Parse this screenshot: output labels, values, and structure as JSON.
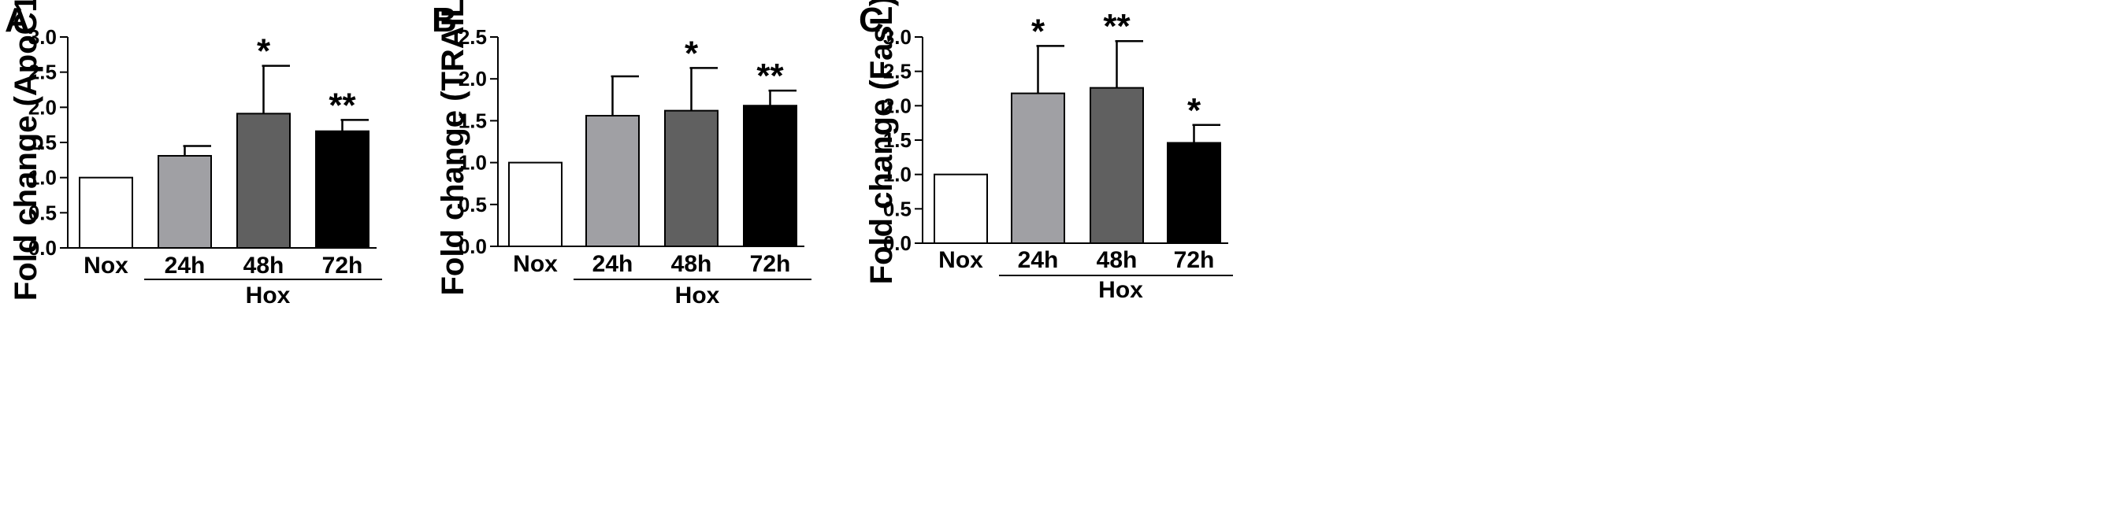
{
  "chart_data": [
    {
      "type": "bar",
      "panel": "A",
      "categories": [
        "Nox",
        "24h",
        "48h",
        "72h"
      ],
      "values": [
        1.0,
        1.31,
        1.91,
        1.66
      ],
      "errors": [
        0,
        0.14,
        0.68,
        0.16
      ],
      "significance": [
        "",
        "",
        "*",
        "**"
      ],
      "colors": [
        "#ffffff",
        "#a0a0a4",
        "#606060",
        "#000000"
      ],
      "ylabel": "Fold change (ApoC1)",
      "ylim": [
        0,
        3.0
      ],
      "yticks": [
        "0.0",
        "0.5",
        "1.0",
        "1.5",
        "2.0",
        "2.5",
        "3.0"
      ],
      "group_label": "Hox",
      "grid": false
    },
    {
      "type": "bar",
      "panel": "B",
      "categories": [
        "Nox",
        "24h",
        "48h",
        "72h"
      ],
      "values": [
        1.0,
        1.56,
        1.62,
        1.68
      ],
      "errors": [
        0,
        0.47,
        0.51,
        0.18
      ],
      "significance": [
        "",
        "",
        "*",
        "**"
      ],
      "colors": [
        "#ffffff",
        "#a0a0a4",
        "#606060",
        "#000000"
      ],
      "ylabel": "Fold change (TRAIL)",
      "ylim": [
        0,
        2.5
      ],
      "yticks": [
        "0.0",
        "0.5",
        "1.0",
        "1.5",
        "2.0",
        "2.5"
      ],
      "group_label": "Hox",
      "grid": false
    },
    {
      "type": "bar",
      "panel": "C",
      "categories": [
        "Nox",
        "24h",
        "48h",
        "72h"
      ],
      "values": [
        1.0,
        2.18,
        2.26,
        1.46
      ],
      "errors": [
        0,
        0.69,
        0.68,
        0.26
      ],
      "significance": [
        "",
        "*",
        "**",
        "*"
      ],
      "colors": [
        "#ffffff",
        "#a0a0a4",
        "#606060",
        "#000000"
      ],
      "ylabel": "Fold change (FasL)",
      "ylim": [
        0,
        3.0
      ],
      "yticks": [
        "0.0",
        "0.5",
        "1.0",
        "1.5",
        "2.0",
        "2.5",
        "3.0"
      ],
      "group_label": "Hox",
      "grid": false
    }
  ]
}
